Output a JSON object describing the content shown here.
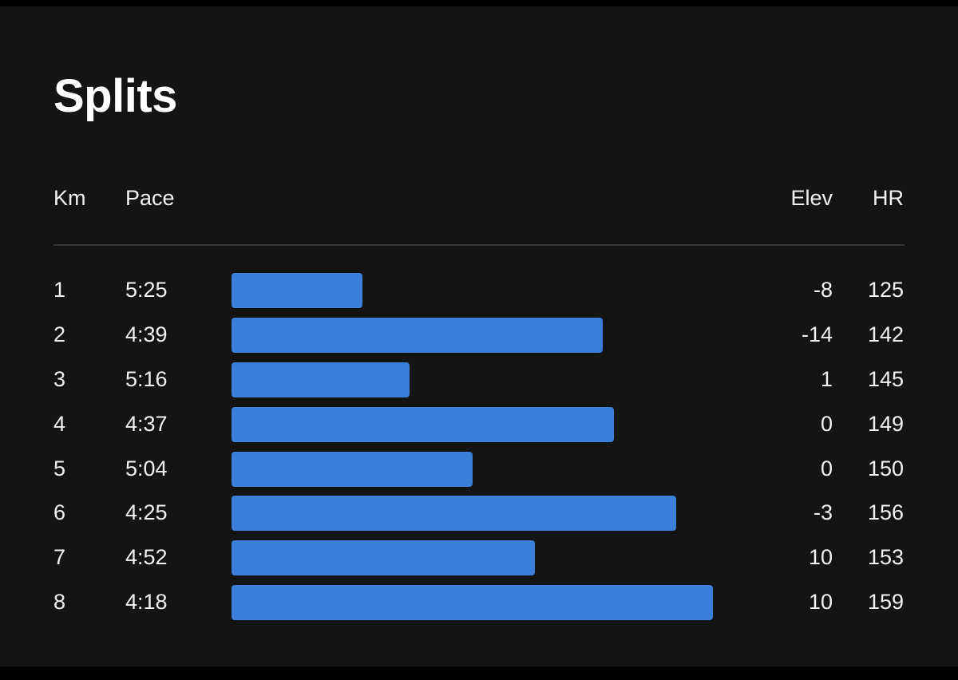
{
  "title": "Splits",
  "headers": {
    "km": "Km",
    "pace": "Pace",
    "elev": "Elev",
    "hr": "HR"
  },
  "accent_color": "#3a7fd9",
  "splits": [
    {
      "km": "1",
      "pace": "5:25",
      "elev": "-8",
      "hr": "125",
      "pace_seconds": 325
    },
    {
      "km": "2",
      "pace": "4:39",
      "elev": "-14",
      "hr": "142",
      "pace_seconds": 279
    },
    {
      "km": "3",
      "pace": "5:16",
      "elev": "1",
      "hr": "145",
      "pace_seconds": 316
    },
    {
      "km": "4",
      "pace": "4:37",
      "elev": "0",
      "hr": "149",
      "pace_seconds": 277
    },
    {
      "km": "5",
      "pace": "5:04",
      "elev": "0",
      "hr": "150",
      "pace_seconds": 304
    },
    {
      "km": "6",
      "pace": "4:25",
      "elev": "-3",
      "hr": "156",
      "pace_seconds": 265
    },
    {
      "km": "7",
      "pace": "4:52",
      "elev": "10",
      "hr": "153",
      "pace_seconds": 292
    },
    {
      "km": "8",
      "pace": "4:18",
      "elev": "10",
      "hr": "159",
      "pace_seconds": 258
    }
  ]
}
